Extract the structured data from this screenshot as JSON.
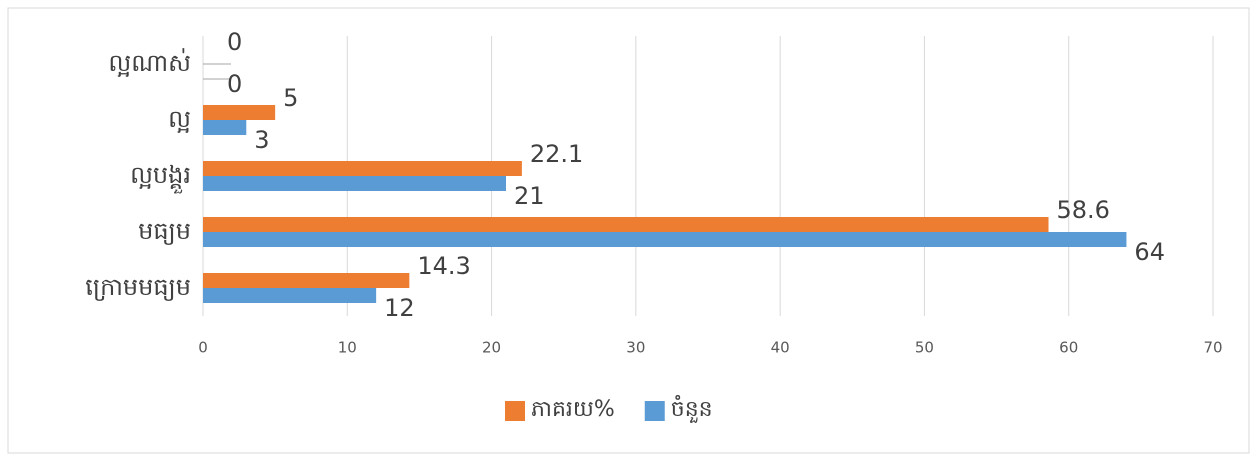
{
  "chart_data": {
    "type": "bar",
    "orientation": "horizontal",
    "categories": [
      "ល្អណាស់",
      "ល្អ",
      "ល្អបង្គួរ",
      "មធ្យម",
      "ក្រោមមធ្យម"
    ],
    "series": [
      {
        "name": "ភាគរយ%",
        "color": "#ed7d31",
        "values": [
          0,
          5,
          22.1,
          58.6,
          14.3
        ]
      },
      {
        "name": "ចំនួន",
        "color": "#5b9bd5",
        "values": [
          0,
          3,
          21,
          64,
          12
        ]
      }
    ],
    "xlim": [
      0,
      70
    ],
    "xticks": [
      0,
      10,
      20,
      30,
      40,
      50,
      60,
      70
    ],
    "grid": true,
    "legend": "bottom"
  }
}
